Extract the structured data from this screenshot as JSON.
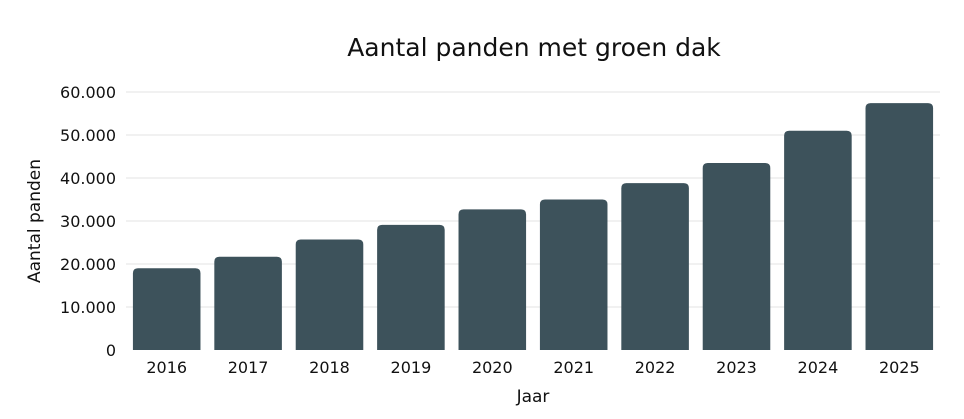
{
  "chart_data": {
    "type": "bar",
    "title": "Aantal panden met groen dak",
    "xlabel": "Jaar",
    "ylabel": "Aantal panden",
    "categories": [
      "2016",
      "2017",
      "2018",
      "2019",
      "2020",
      "2021",
      "2022",
      "2023",
      "2024",
      "2025"
    ],
    "values": [
      19000,
      21700,
      25700,
      29100,
      32700,
      35000,
      38800,
      43500,
      51000,
      57400
    ],
    "ylim": [
      0,
      60000
    ],
    "yticks": [
      0,
      10000,
      20000,
      30000,
      40000,
      50000,
      60000
    ],
    "ytick_labels": [
      "0",
      "10.000",
      "20.000",
      "30.000",
      "40.000",
      "50.000",
      "60.000"
    ],
    "grid": true,
    "legend": "none",
    "colors": {
      "bar": "#3d525b",
      "grid": "#e3e3e3",
      "text": "#111111"
    }
  }
}
